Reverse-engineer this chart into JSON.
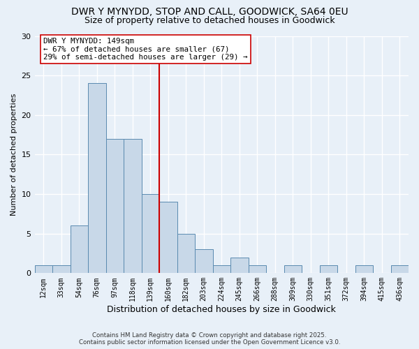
{
  "title": "DWR Y MYNYDD, STOP AND CALL, GOODWICK, SA64 0EU",
  "subtitle": "Size of property relative to detached houses in Goodwick",
  "xlabel": "Distribution of detached houses by size in Goodwick",
  "ylabel": "Number of detached properties",
  "bin_labels": [
    "12sqm",
    "33sqm",
    "54sqm",
    "76sqm",
    "97sqm",
    "118sqm",
    "139sqm",
    "160sqm",
    "182sqm",
    "203sqm",
    "224sqm",
    "245sqm",
    "266sqm",
    "288sqm",
    "309sqm",
    "330sqm",
    "351sqm",
    "372sqm",
    "394sqm",
    "415sqm",
    "436sqm"
  ],
  "bin_counts": [
    1,
    1,
    6,
    24,
    17,
    17,
    10,
    9,
    5,
    3,
    1,
    2,
    1,
    0,
    1,
    0,
    1,
    0,
    1,
    0,
    1
  ],
  "bar_color": "#c8d8e8",
  "bar_edge_color": "#5a8ab0",
  "vline_x": 6.5,
  "vline_color": "#cc0000",
  "annotation_line1": "DWR Y MYNYDD: 149sqm",
  "annotation_line2": "← 67% of detached houses are smaller (67)",
  "annotation_line3": "29% of semi-detached houses are larger (29) →",
  "annotation_box_color": "#ffffff",
  "annotation_box_edge": "#cc0000",
  "ylim": [
    0,
    30
  ],
  "yticks": [
    0,
    5,
    10,
    15,
    20,
    25,
    30
  ],
  "footer_line1": "Contains HM Land Registry data © Crown copyright and database right 2025.",
  "footer_line2": "Contains public sector information licensed under the Open Government Licence v3.0.",
  "background_color": "#e8f0f8",
  "grid_color": "#ffffff",
  "title_fontsize": 10,
  "subtitle_fontsize": 9
}
